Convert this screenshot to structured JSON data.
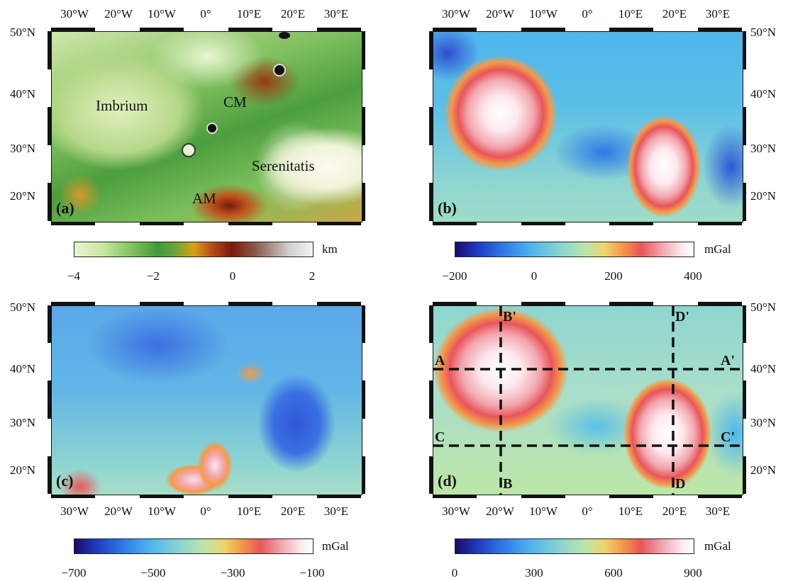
{
  "panels": {
    "a": {
      "label": "(a)",
      "features": {
        "imbrium": "Imbrium",
        "cm": "CM",
        "serenitatis": "Serenitatis",
        "am": "AM"
      }
    },
    "b": {
      "label": "(b)"
    },
    "c": {
      "label": "(c)"
    },
    "d": {
      "label": "(d)",
      "profiles": {
        "a": "A",
        "a_prime": "A'",
        "b": "B",
        "b_prime": "B'",
        "c": "C",
        "c_prime": "C'",
        "d": "D",
        "d_prime": "D'"
      }
    }
  },
  "axes": {
    "lon_labels": [
      "30°W",
      "20°W",
      "10°W",
      "0°",
      "10°E",
      "20°E",
      "30°E"
    ],
    "lat_labels": [
      "50°N",
      "40°N",
      "30°N",
      "20°N"
    ]
  },
  "colorbars": {
    "a": {
      "unit": "km",
      "ticks": [
        "−4",
        "−2",
        "0",
        "2"
      ]
    },
    "b": {
      "unit": "mGal",
      "ticks": [
        "−200",
        "0",
        "200",
        "400"
      ]
    },
    "c": {
      "unit": "mGal",
      "ticks": [
        "−700",
        "−500",
        "−300",
        "−100"
      ]
    },
    "d": {
      "unit": "mGal",
      "ticks": [
        "0",
        "300",
        "600",
        "900"
      ]
    }
  },
  "colors": {
    "topo": [
      "#e9f7d0",
      "#c9e7a3",
      "#7cbf5c",
      "#3f9a3a",
      "#6aa43a",
      "#d7a21a",
      "#b5481a",
      "#7a1a0c",
      "#8a5a4a",
      "#cfcfcf",
      "#f4f4f4"
    ],
    "gravity": [
      "#1a0b6a",
      "#1f3fc4",
      "#2f78e6",
      "#4eb6ec",
      "#8fd6d0",
      "#bde6a6",
      "#f0d26a",
      "#f39a4a",
      "#e8565a",
      "#f2a7b0",
      "#fde9ee",
      "#ffffff"
    ]
  }
}
